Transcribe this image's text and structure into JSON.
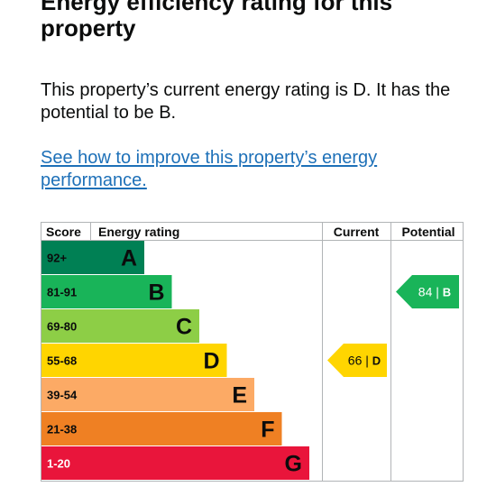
{
  "page": {
    "heading": "Energy efficiency rating for this property",
    "summary": "This property’s current energy rating is D. It has the potential to be B.",
    "improve_link": "See how to improve this property’s energy performance."
  },
  "chart_data": {
    "type": "table",
    "columns": {
      "score": "Score",
      "rating": "Energy rating",
      "current": "Current",
      "potential": "Potential"
    },
    "bands": [
      {
        "letter": "A",
        "range": "92+",
        "color": "#008054",
        "range_color": "#0b0c0c",
        "letter_color": "#0b0c0c"
      },
      {
        "letter": "B",
        "range": "81-91",
        "color": "#19b459",
        "range_color": "#0b0c0c",
        "letter_color": "#0b0c0c"
      },
      {
        "letter": "C",
        "range": "69-80",
        "color": "#8dce46",
        "range_color": "#0b0c0c",
        "letter_color": "#0b0c0c"
      },
      {
        "letter": "D",
        "range": "55-68",
        "color": "#ffd500",
        "range_color": "#0b0c0c",
        "letter_color": "#0b0c0c"
      },
      {
        "letter": "E",
        "range": "39-54",
        "color": "#fcaa65",
        "range_color": "#0b0c0c",
        "letter_color": "#0b0c0c"
      },
      {
        "letter": "F",
        "range": "21-38",
        "color": "#ef8023",
        "range_color": "#0b0c0c",
        "letter_color": "#0b0c0c"
      },
      {
        "letter": "G",
        "range": "1-20",
        "color": "#e9153b",
        "range_color": "#ffffff",
        "letter_color": "#0b0c0c"
      }
    ],
    "current": {
      "score": 66,
      "letter": "D",
      "label": "66 | D",
      "color": "#ffd500",
      "text_color": "#0b0c0c"
    },
    "potential": {
      "score": 84,
      "letter": "B",
      "label": "84 | B",
      "color": "#19b459",
      "text_color": "#ffffff"
    }
  }
}
